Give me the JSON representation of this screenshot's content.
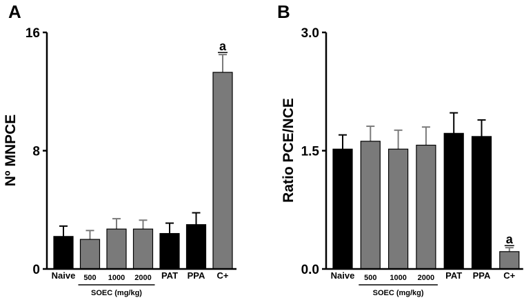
{
  "colors": {
    "dark_bar": "#000000",
    "gray_bar": "#7a7a7a",
    "axis": "#000000",
    "text": "#000000"
  },
  "chart_data": [
    {
      "panel_label": "A",
      "type": "bar",
      "ylabel": "Nº MNPCE",
      "xlabel": "",
      "ylim": [
        0,
        16
      ],
      "yticks": [
        "0",
        "8",
        "16"
      ],
      "ytick_values": [
        0,
        8,
        16
      ],
      "group_label": "SOEC (mg/kg)",
      "group_span": [
        1,
        3
      ],
      "categories": [
        "Naive",
        "500",
        "1000",
        "2000",
        "PAT",
        "PPA",
        "C+"
      ],
      "values": [
        2.2,
        2.0,
        2.7,
        2.7,
        2.4,
        3.0,
        13.3
      ],
      "errors": [
        0.7,
        0.6,
        0.7,
        0.6,
        0.7,
        0.8,
        1.2
      ],
      "bar_colors": [
        "dark",
        "gray",
        "gray",
        "gray",
        "dark",
        "dark",
        "gray"
      ],
      "annotations": [
        {
          "category": "C+",
          "text": "a"
        }
      ]
    },
    {
      "panel_label": "B",
      "type": "bar",
      "ylabel": "Ratio PCE/NCE",
      "xlabel": "",
      "ylim": [
        0,
        3
      ],
      "yticks": [
        "0.0",
        "1.5",
        "3.0"
      ],
      "ytick_values": [
        0,
        1.5,
        3.0
      ],
      "group_label": "SOEC (mg/kg)",
      "group_span": [
        1,
        3
      ],
      "categories": [
        "Naive",
        "500",
        "1000",
        "2000",
        "PAT",
        "PPA",
        "C+"
      ],
      "values": [
        1.52,
        1.62,
        1.52,
        1.57,
        1.72,
        1.68,
        0.22
      ],
      "errors": [
        0.18,
        0.19,
        0.24,
        0.23,
        0.26,
        0.21,
        0.05
      ],
      "bar_colors": [
        "dark",
        "gray",
        "gray",
        "gray",
        "dark",
        "dark",
        "gray"
      ],
      "annotations": [
        {
          "category": "C+",
          "text": "a"
        }
      ]
    }
  ]
}
